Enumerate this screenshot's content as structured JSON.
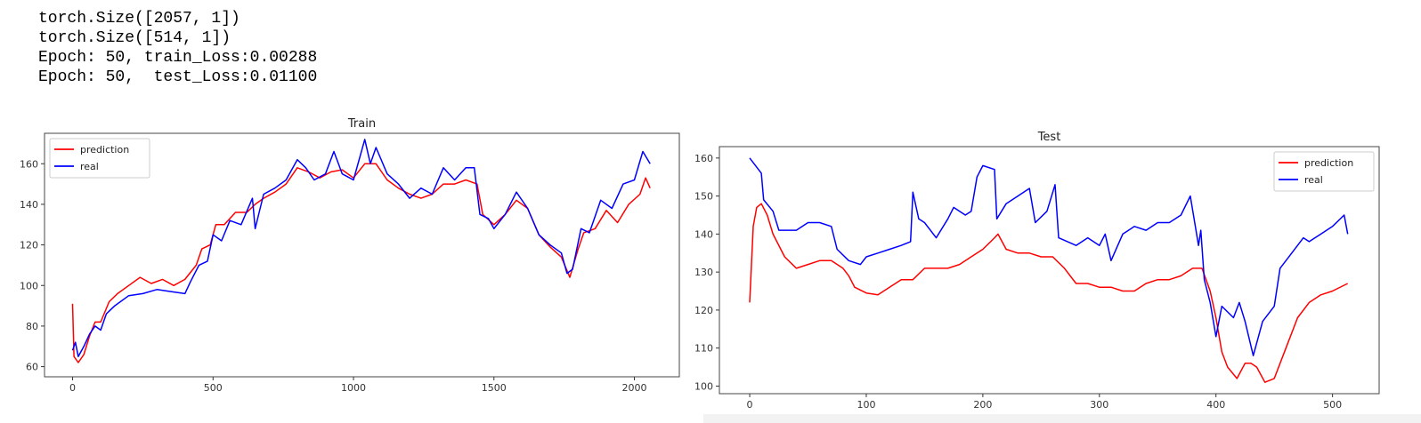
{
  "output_lines": [
    "torch.Size([2057, 1])",
    "torch.Size([514, 1])",
    "Epoch: 50, train_Loss:0.00288",
    "Epoch: 50,  test_Loss:0.01100"
  ],
  "chart_data": [
    {
      "type": "line",
      "title": "Train",
      "xlim": [
        -100,
        2160
      ],
      "ylim": [
        55,
        175
      ],
      "xticks": [
        0,
        500,
        1000,
        1500,
        2000
      ],
      "yticks": [
        60,
        80,
        100,
        120,
        140,
        160
      ],
      "grid": false,
      "legend": "top-left",
      "series": [
        {
          "name": "prediction",
          "color": "#ff0000",
          "x": [
            0,
            5,
            20,
            40,
            60,
            80,
            100,
            130,
            160,
            200,
            240,
            280,
            320,
            360,
            400,
            440,
            460,
            490,
            510,
            540,
            580,
            620,
            650,
            680,
            720,
            760,
            800,
            840,
            880,
            920,
            960,
            1000,
            1040,
            1080,
            1120,
            1160,
            1200,
            1240,
            1280,
            1320,
            1360,
            1400,
            1440,
            1460,
            1500,
            1540,
            1580,
            1620,
            1660,
            1700,
            1740,
            1770,
            1800,
            1820,
            1860,
            1900,
            1940,
            1980,
            2020,
            2040,
            2056
          ],
          "y": [
            91,
            65,
            62,
            66,
            75,
            82,
            82,
            92,
            96,
            100,
            104,
            101,
            103,
            100,
            103,
            110,
            118,
            120,
            130,
            130,
            136,
            136,
            140,
            143,
            146,
            150,
            158,
            156,
            153,
            156,
            157,
            153,
            160,
            160,
            152,
            148,
            145,
            143,
            145,
            150,
            150,
            152,
            150,
            135,
            130,
            135,
            142,
            138,
            125,
            119,
            114,
            104,
            118,
            126,
            128,
            137,
            131,
            140,
            145,
            153,
            148
          ]
        },
        {
          "name": "real",
          "color": "#0000ff",
          "x": [
            0,
            10,
            20,
            40,
            60,
            80,
            100,
            120,
            150,
            200,
            250,
            300,
            350,
            400,
            420,
            450,
            480,
            500,
            530,
            560,
            600,
            640,
            650,
            680,
            720,
            760,
            800,
            830,
            860,
            900,
            930,
            960,
            1000,
            1040,
            1060,
            1080,
            1120,
            1160,
            1200,
            1240,
            1280,
            1320,
            1360,
            1400,
            1430,
            1450,
            1480,
            1500,
            1540,
            1580,
            1620,
            1660,
            1700,
            1740,
            1760,
            1780,
            1810,
            1840,
            1880,
            1920,
            1960,
            2000,
            2030,
            2056
          ],
          "y": [
            68,
            72,
            65,
            70,
            76,
            80,
            78,
            86,
            90,
            95,
            96,
            98,
            97,
            96,
            102,
            110,
            112,
            125,
            122,
            132,
            130,
            143,
            128,
            145,
            148,
            152,
            162,
            158,
            152,
            155,
            166,
            155,
            152,
            172,
            160,
            168,
            155,
            150,
            143,
            148,
            145,
            158,
            152,
            158,
            158,
            135,
            133,
            128,
            135,
            146,
            138,
            125,
            120,
            116,
            106,
            108,
            128,
            126,
            142,
            138,
            150,
            152,
            166,
            160
          ]
        }
      ]
    },
    {
      "type": "line",
      "title": "Test",
      "xlim": [
        -26,
        540
      ],
      "ylim": [
        98,
        163
      ],
      "xticks": [
        0,
        100,
        200,
        300,
        400,
        500
      ],
      "yticks": [
        100,
        110,
        120,
        130,
        140,
        150,
        160
      ],
      "grid": false,
      "legend": "top-right",
      "series": [
        {
          "name": "prediction",
          "color": "#ff0000",
          "x": [
            0,
            3,
            6,
            10,
            15,
            20,
            30,
            40,
            50,
            60,
            70,
            80,
            85,
            90,
            100,
            110,
            120,
            130,
            140,
            150,
            160,
            170,
            180,
            190,
            200,
            210,
            213,
            220,
            230,
            240,
            250,
            260,
            270,
            280,
            290,
            300,
            310,
            320,
            330,
            340,
            350,
            360,
            370,
            380,
            388,
            395,
            400,
            405,
            410,
            418,
            425,
            430,
            435,
            442,
            450,
            460,
            470,
            480,
            490,
            500,
            513
          ],
          "y": [
            122,
            142,
            147,
            148,
            145,
            140,
            134,
            131,
            132,
            133,
            133,
            131,
            129,
            126,
            124.5,
            124,
            126,
            128,
            128,
            131,
            131,
            131,
            132,
            134,
            136,
            139,
            140,
            136,
            135,
            135,
            134,
            134,
            131,
            127,
            127,
            126,
            126,
            125,
            125,
            127,
            128,
            128,
            129,
            131,
            131,
            125,
            118,
            109,
            105,
            102,
            106,
            106,
            105,
            101,
            102,
            110,
            118,
            122,
            124,
            125,
            127
          ]
        },
        {
          "name": "real",
          "color": "#0000ff",
          "x": [
            0,
            5,
            10,
            12,
            20,
            25,
            30,
            40,
            50,
            60,
            70,
            75,
            85,
            95,
            100,
            110,
            120,
            130,
            138,
            140,
            145,
            150,
            160,
            170,
            175,
            185,
            190,
            195,
            200,
            210,
            212,
            220,
            230,
            240,
            245,
            255,
            262,
            265,
            280,
            290,
            300,
            305,
            310,
            320,
            330,
            340,
            350,
            360,
            370,
            378,
            385,
            387,
            390,
            395,
            400,
            405,
            415,
            420,
            425,
            432,
            440,
            450,
            455,
            465,
            475,
            480,
            490,
            500,
            510,
            513
          ],
          "y": [
            160,
            158,
            156,
            149,
            146,
            141,
            141,
            141,
            143,
            143,
            142,
            136,
            133,
            132,
            134,
            135,
            136,
            137,
            138,
            151,
            144,
            143,
            139,
            144,
            147,
            145,
            146,
            155,
            158,
            157,
            144,
            148,
            150,
            152,
            143,
            146,
            153,
            139,
            137,
            139,
            137,
            140,
            133,
            140,
            142,
            141,
            143,
            143,
            145,
            150,
            137,
            141,
            128,
            122,
            113,
            121,
            118,
            122,
            117,
            108,
            117,
            121,
            131,
            135,
            139,
            138,
            140,
            142,
            145,
            140
          ]
        }
      ]
    }
  ]
}
